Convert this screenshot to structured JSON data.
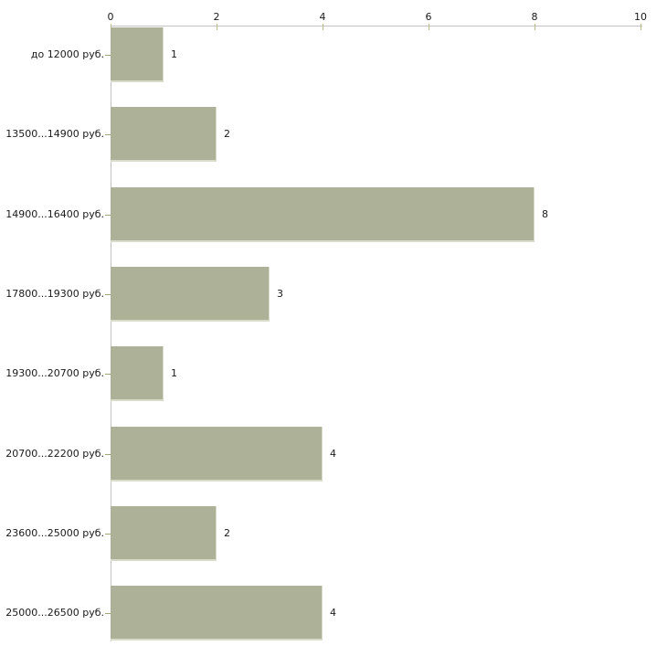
{
  "chart_data": {
    "type": "bar",
    "orientation": "horizontal",
    "title": "",
    "xlabel": "",
    "ylabel": "",
    "categories": [
      "до 12000 руб.",
      "13500...14900 руб.",
      "14900...16400 руб.",
      "17800...19300 руб.",
      "19300...20700 руб.",
      "20700...22200 руб.",
      "23600...25000 руб.",
      "25000...26500 руб."
    ],
    "values": [
      1,
      2,
      8,
      3,
      1,
      4,
      2,
      4
    ],
    "value_labels_shown": true,
    "xlim": [
      0,
      10
    ],
    "xticks": [
      0,
      2,
      4,
      6,
      8,
      10
    ],
    "x_axis_position": "top",
    "grid": false,
    "legend": "none",
    "colors": {
      "bar_fill": "#acb197",
      "bar_edge_light": "#d9dcc9",
      "axis_line": "#c2c2c2",
      "xtick_mark": "#bcbc90",
      "ytick_mark": "#a3a379",
      "text": "#1a1a1a",
      "background": "#ffffff"
    }
  }
}
